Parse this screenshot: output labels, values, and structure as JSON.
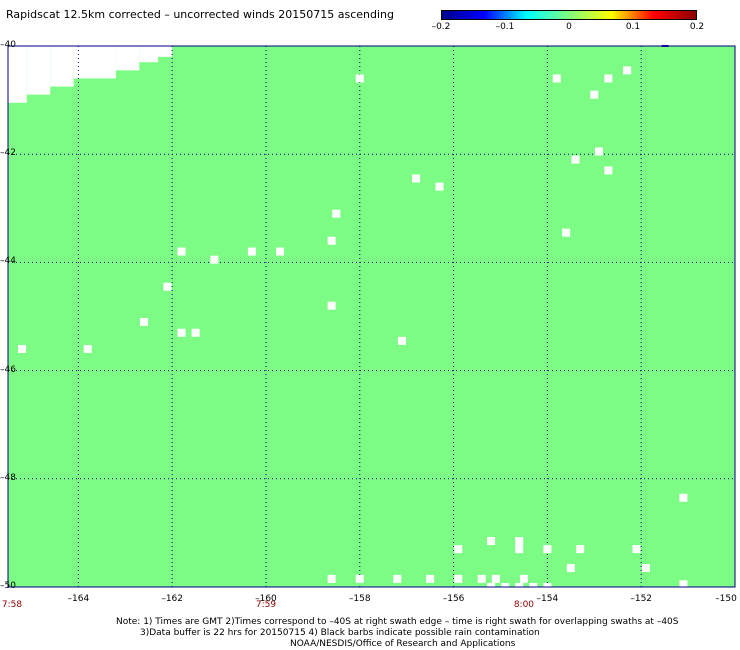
{
  "title": "Rapidscat 12.5km corrected – uncorrected winds 20150715 ascending",
  "colorbar": {
    "ticks": [
      "–0.2",
      "–0.1",
      "0",
      "0.1",
      "0.2"
    ],
    "tick_values": [
      -0.2,
      -0.1,
      0,
      0.1,
      0.2
    ],
    "gradient": [
      "#00008b",
      "#0000ff",
      "#00ffff",
      "#7fff7f",
      "#ffff00",
      "#ff0000",
      "#8b0000"
    ]
  },
  "map": {
    "background_color": "#7cfc84",
    "grid_color": "#00007f",
    "lon_range": [
      -165.5,
      -150
    ],
    "lat_range": [
      -50,
      -40
    ],
    "lon_gridlines": [
      -164,
      -162,
      -160,
      -158,
      -156,
      -154,
      -152
    ],
    "lat_gridlines": [
      -42,
      -44,
      -46,
      -48
    ],
    "x_labels": [
      "–164",
      "–162",
      "–160",
      "–158",
      "–156",
      "–154",
      "–152",
      "–150"
    ],
    "x_label_lons": [
      -164,
      -162,
      -160,
      -158,
      -156,
      -154,
      -152,
      -150
    ],
    "y_labels": [
      "–40",
      "–42",
      "–44",
      "–46",
      "–48",
      "–50"
    ],
    "y_label_lats": [
      -40,
      -42,
      -44,
      -46,
      -48,
      -50
    ],
    "time_labels": [
      "7:58",
      "7:59",
      "8:00"
    ],
    "time_label_lons": [
      -165.5,
      -160,
      -154.5
    ],
    "no_data_lon_steps": [
      [
        -165.5,
        -41.05
      ],
      [
        -165.1,
        -40.9
      ],
      [
        -164.6,
        -40.75
      ],
      [
        -164.1,
        -40.6
      ],
      [
        -163.2,
        -40.45
      ],
      [
        -162.7,
        -40.3
      ],
      [
        -162.3,
        -40.2
      ]
    ],
    "no_data_points": [
      [
        -158.0,
        -40.6
      ],
      [
        -153.8,
        -40.6
      ],
      [
        -153.0,
        -40.9
      ],
      [
        -152.7,
        -40.6
      ],
      [
        -152.3,
        -40.45
      ],
      [
        -152.9,
        -41.95
      ],
      [
        -153.4,
        -42.1
      ],
      [
        -152.7,
        -42.3
      ],
      [
        -156.8,
        -42.45
      ],
      [
        -156.3,
        -42.6
      ],
      [
        -158.5,
        -43.1
      ],
      [
        -153.6,
        -43.45
      ],
      [
        -158.6,
        -43.6
      ],
      [
        -161.8,
        -43.8
      ],
      [
        -160.3,
        -43.8
      ],
      [
        -159.7,
        -43.8
      ],
      [
        -161.1,
        -43.95
      ],
      [
        -162.1,
        -44.45
      ],
      [
        -158.6,
        -44.8
      ],
      [
        -162.6,
        -45.1
      ],
      [
        -161.8,
        -45.3
      ],
      [
        -161.5,
        -45.3
      ],
      [
        -157.1,
        -45.45
      ],
      [
        -165.2,
        -45.6
      ],
      [
        -163.8,
        -45.6
      ],
      [
        -151.1,
        -48.35
      ],
      [
        -155.2,
        -49.15
      ],
      [
        -154.6,
        -49.15
      ],
      [
        -155.9,
        -49.3
      ],
      [
        -154.6,
        -49.3
      ],
      [
        -154.0,
        -49.3
      ],
      [
        -153.3,
        -49.3
      ],
      [
        -152.1,
        -49.3
      ],
      [
        -153.5,
        -49.65
      ],
      [
        -151.9,
        -49.65
      ],
      [
        -158.6,
        -49.85
      ],
      [
        -158.0,
        -49.85
      ],
      [
        -157.2,
        -49.85
      ],
      [
        -156.5,
        -49.85
      ],
      [
        -155.9,
        -49.85
      ],
      [
        -155.4,
        -49.85
      ],
      [
        -155.1,
        -49.85
      ],
      [
        -154.5,
        -49.85
      ],
      [
        -151.1,
        -49.95
      ],
      [
        -155.2,
        -50.0
      ],
      [
        -154.9,
        -50.0
      ],
      [
        -154.6,
        -50.0
      ],
      [
        -154.3,
        -50.0
      ],
      [
        -154.0,
        -50.0
      ],
      [
        -159.8,
        -50.15
      ],
      [
        -159.4,
        -50.15
      ],
      [
        -159.0,
        -50.15
      ],
      [
        -158.7,
        -50.15
      ],
      [
        -152.5,
        -50.15
      ],
      [
        -152.1,
        -50.15
      ],
      [
        -151.7,
        -50.15
      ]
    ],
    "blue_marks": [
      [
        -151.5,
        -40.0
      ]
    ]
  },
  "notes": [
    "Note: 1) Times are GMT 2)Times correspond to –40S at right swath edge – time is right swath for overlapping swaths at –40S",
    "3)Data buffer is 22 hrs for 20150715 4) Black barbs indicate possible rain contamination",
    "NOAA/NESDIS/Office of Research and Applications"
  ]
}
